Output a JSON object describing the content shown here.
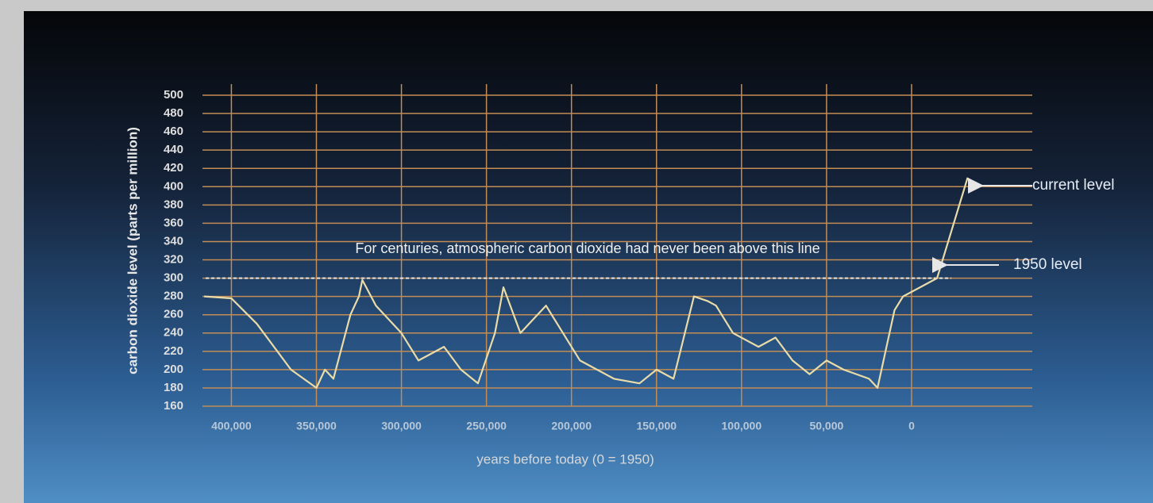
{
  "chart_data": {
    "type": "line",
    "y_label": "carbon dioxide level (parts per million)",
    "x_label": "years before today (0 = 1950)",
    "annotations": {
      "threshold_text": "For centuries, atmospheric carbon dioxide had never been above this line",
      "current_level": "current level",
      "level_1950": "1950 level"
    },
    "threshold": 300,
    "xlim": [
      417000,
      -71000
    ],
    "ylim": [
      160,
      500
    ],
    "xticks": [
      {
        "value": 400000,
        "label": "400,000"
      },
      {
        "value": 350000,
        "label": "350,000"
      },
      {
        "value": 300000,
        "label": "300,000"
      },
      {
        "value": 250000,
        "label": "250,000"
      },
      {
        "value": 200000,
        "label": "200,000"
      },
      {
        "value": 150000,
        "label": "150,000"
      },
      {
        "value": 100000,
        "label": "100,000"
      },
      {
        "value": 50000,
        "label": "50,000"
      },
      0
    ],
    "yticks": [
      160,
      180,
      200,
      220,
      240,
      260,
      280,
      300,
      320,
      340,
      360,
      380,
      400,
      420,
      440,
      460,
      480,
      500
    ],
    "grid": true,
    "series": [
      {
        "color": "#eadca8",
        "x": [
          416000,
          400000,
          385000,
          365000,
          350000,
          345000,
          340000,
          330000,
          325000,
          323000,
          315000,
          300000,
          290000,
          275000,
          265000,
          255000,
          245000,
          240000,
          230000,
          215000,
          205000,
          195000,
          175000,
          160000,
          150000,
          140000,
          128000,
          120000,
          115000,
          105000,
          90000,
          80000,
          70000,
          60000,
          50000,
          40000,
          25000,
          20000,
          10000,
          5000,
          0,
          -15000,
          -33000
        ],
        "values": [
          280,
          278,
          250,
          200,
          180,
          200,
          190,
          260,
          280,
          298,
          270,
          240,
          210,
          225,
          200,
          185,
          240,
          290,
          240,
          270,
          240,
          210,
          190,
          185,
          200,
          190,
          280,
          275,
          270,
          240,
          225,
          235,
          210,
          195,
          210,
          200,
          190,
          180,
          265,
          280,
          285,
          300,
          410
        ]
      }
    ]
  }
}
